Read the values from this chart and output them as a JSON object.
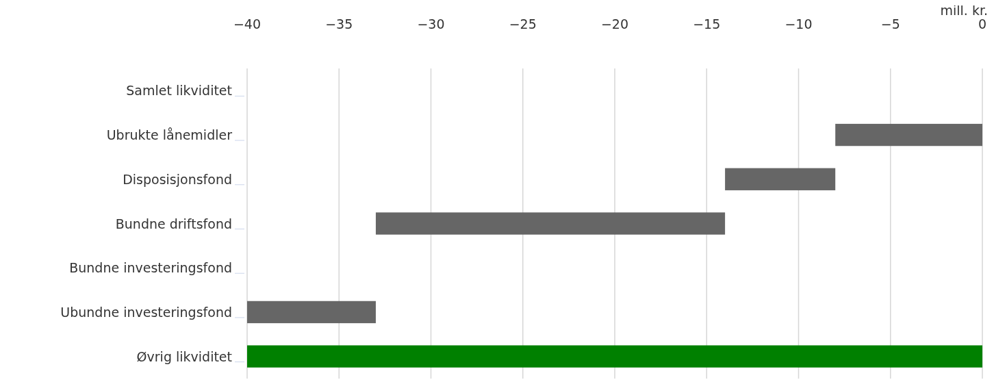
{
  "chart_data": {
    "type": "bar",
    "orientation": "horizontal",
    "xlabel": "mill. kr.",
    "categories": [
      "Samlet likviditet",
      "Ubrukte lånemidler",
      "Disposisjonsfond",
      "Bundne driftsfond",
      "Bundne investeringsfond",
      "Ubundne investeringsfond",
      "Øvrig likviditet"
    ],
    "values": [
      null,
      -8,
      -6,
      -19,
      null,
      -7,
      -40
    ],
    "base": [
      null,
      0,
      -8,
      -14,
      null,
      -33,
      0
    ],
    "colors": [
      null,
      "#666666",
      "#666666",
      "#666666",
      null,
      "#666666",
      "#008000"
    ],
    "xlim": [
      -40,
      0
    ],
    "xticks": [
      -40,
      -35,
      -30,
      -25,
      -20,
      -15,
      -10,
      -5,
      0
    ],
    "grid": "x"
  }
}
